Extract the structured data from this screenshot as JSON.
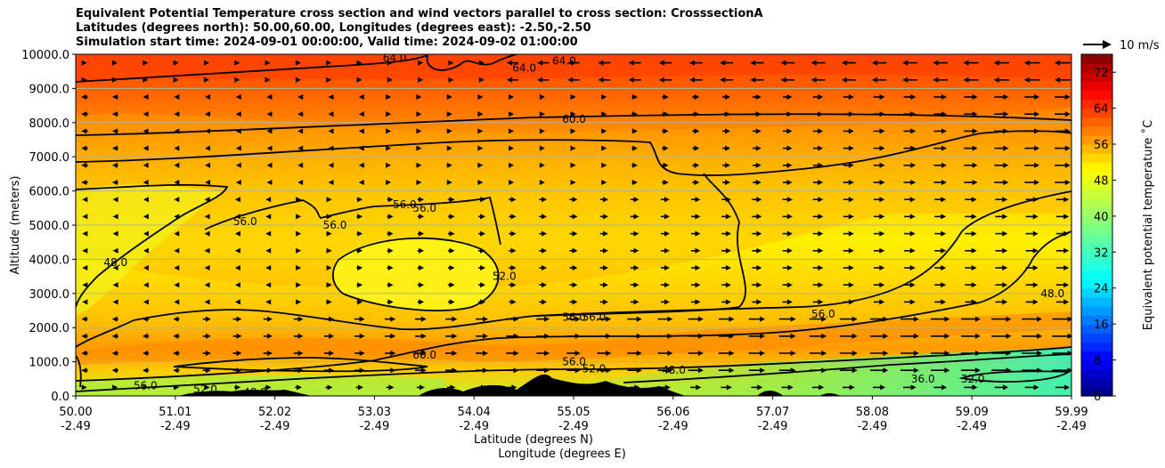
{
  "title": {
    "line1": "Equivalent Potential Temperature cross section and wind vectors parallel to cross section: CrosssectionA",
    "line2": "Latitudes (degrees north): 50.00,60.00, Longitudes (degrees east): -2.50,-2.50",
    "line3": "Simulation start time: 2024-09-01 00:00:00, Valid time: 2024-09-02 01:00:00"
  },
  "chart_data": {
    "type": "heatmap",
    "subtype": "filled contour cross section with contour lines and wind vectors",
    "ylabel": "Altitude (meters)",
    "xlabel_line1": "Latitude (degrees N)",
    "xlabel_line2": "Longitude (degrees E)",
    "ylim": [
      0,
      10000
    ],
    "y_ticks": [
      "0.0",
      "1000.0",
      "2000.0",
      "3000.0",
      "4000.0",
      "5000.0",
      "6000.0",
      "7000.0",
      "8000.0",
      "9000.0",
      "10000.0"
    ],
    "x_ticks_lat": [
      "50.00",
      "51.01",
      "52.02",
      "53.03",
      "54.04",
      "55.05",
      "56.06",
      "57.07",
      "58.08",
      "59.09",
      "59.99"
    ],
    "x_ticks_lon": [
      "-2.49",
      "-2.49",
      "-2.49",
      "-2.49",
      "-2.49",
      "-2.49",
      "-2.49",
      "-2.49",
      "-2.49",
      "-2.49",
      "-2.49"
    ],
    "grid": "horizontal",
    "colorbar": {
      "label": "Equivalent potential temperature ˚C",
      "range": [
        0,
        76
      ],
      "ticks": [
        "0",
        "8",
        "16",
        "24",
        "32",
        "40",
        "48",
        "56",
        "64",
        "72"
      ]
    },
    "quiver_key": "10 m/s",
    "contour_labels": [
      {
        "text": "64.0",
        "lat": 53.2,
        "alt": 9900
      },
      {
        "text": "64.0",
        "lat": 54.5,
        "alt": 9600
      },
      {
        "text": "64.0",
        "lat": 54.9,
        "alt": 9800
      },
      {
        "text": "60.0",
        "lat": 55.0,
        "alt": 8100
      },
      {
        "text": "56.0",
        "lat": 51.7,
        "alt": 5100
      },
      {
        "text": "56.0",
        "lat": 52.6,
        "alt": 5000
      },
      {
        "text": "56.0",
        "lat": 53.3,
        "alt": 5600
      },
      {
        "text": "56.0",
        "lat": 53.5,
        "alt": 5500
      },
      {
        "text": "48.0",
        "lat": 50.4,
        "alt": 3900
      },
      {
        "text": "52.0",
        "lat": 54.3,
        "alt": 3500
      },
      {
        "text": "56.0",
        "lat": 55.0,
        "alt": 2300
      },
      {
        "text": "56.0",
        "lat": 55.2,
        "alt": 2300
      },
      {
        "text": "56.0",
        "lat": 57.5,
        "alt": 2400
      },
      {
        "text": "60.0",
        "lat": 53.5,
        "alt": 1200
      },
      {
        "text": "56.0",
        "lat": 55.0,
        "alt": 1000
      },
      {
        "text": "52.0",
        "lat": 55.2,
        "alt": 800
      },
      {
        "text": "48.0",
        "lat": 56.0,
        "alt": 750
      },
      {
        "text": "56.0",
        "lat": 50.7,
        "alt": 300
      },
      {
        "text": "52.0",
        "lat": 51.3,
        "alt": 200
      },
      {
        "text": "48.0",
        "lat": 51.8,
        "alt": 100
      },
      {
        "text": "48.0",
        "lat": 59.8,
        "alt": 3000
      },
      {
        "text": "36.0",
        "lat": 58.5,
        "alt": 500
      },
      {
        "text": "32.0",
        "lat": 59.0,
        "alt": 500
      }
    ]
  }
}
